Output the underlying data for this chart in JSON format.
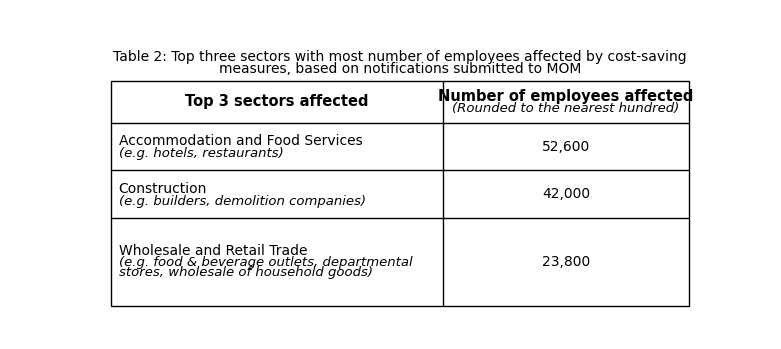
{
  "title_line1": "Table 2: Top three sectors with most number of employees affected by cost-saving",
  "title_line2": "measures, based on notifications submitted to MOM",
  "col1_header": "Top 3 sectors affected",
  "col2_header_line1": "Number of employees affected",
  "col2_header_line2": "(Rounded to the nearest hundred)",
  "rows": [
    {
      "sector_line1": "Accommodation and Food Services",
      "sector_line2": "(e.g. hotels, restaurants)",
      "value": "52,600"
    },
    {
      "sector_line1": "Construction",
      "sector_line2": "(e.g. builders, demolition companies)",
      "value": "42,000"
    },
    {
      "sector_line1": "Wholesale and Retail Trade",
      "sector_line2_a": "(e.g. food & beverage outlets, departmental",
      "sector_line2_b": "stores, wholesale of household goods)",
      "value": "23,800"
    }
  ],
  "bg_color": "#ffffff",
  "border_color": "#000000",
  "text_color": "#000000",
  "title_fontsize": 10.0,
  "header_fontsize": 10.5,
  "cell_fontsize": 10.0,
  "italic_fontsize": 9.5
}
